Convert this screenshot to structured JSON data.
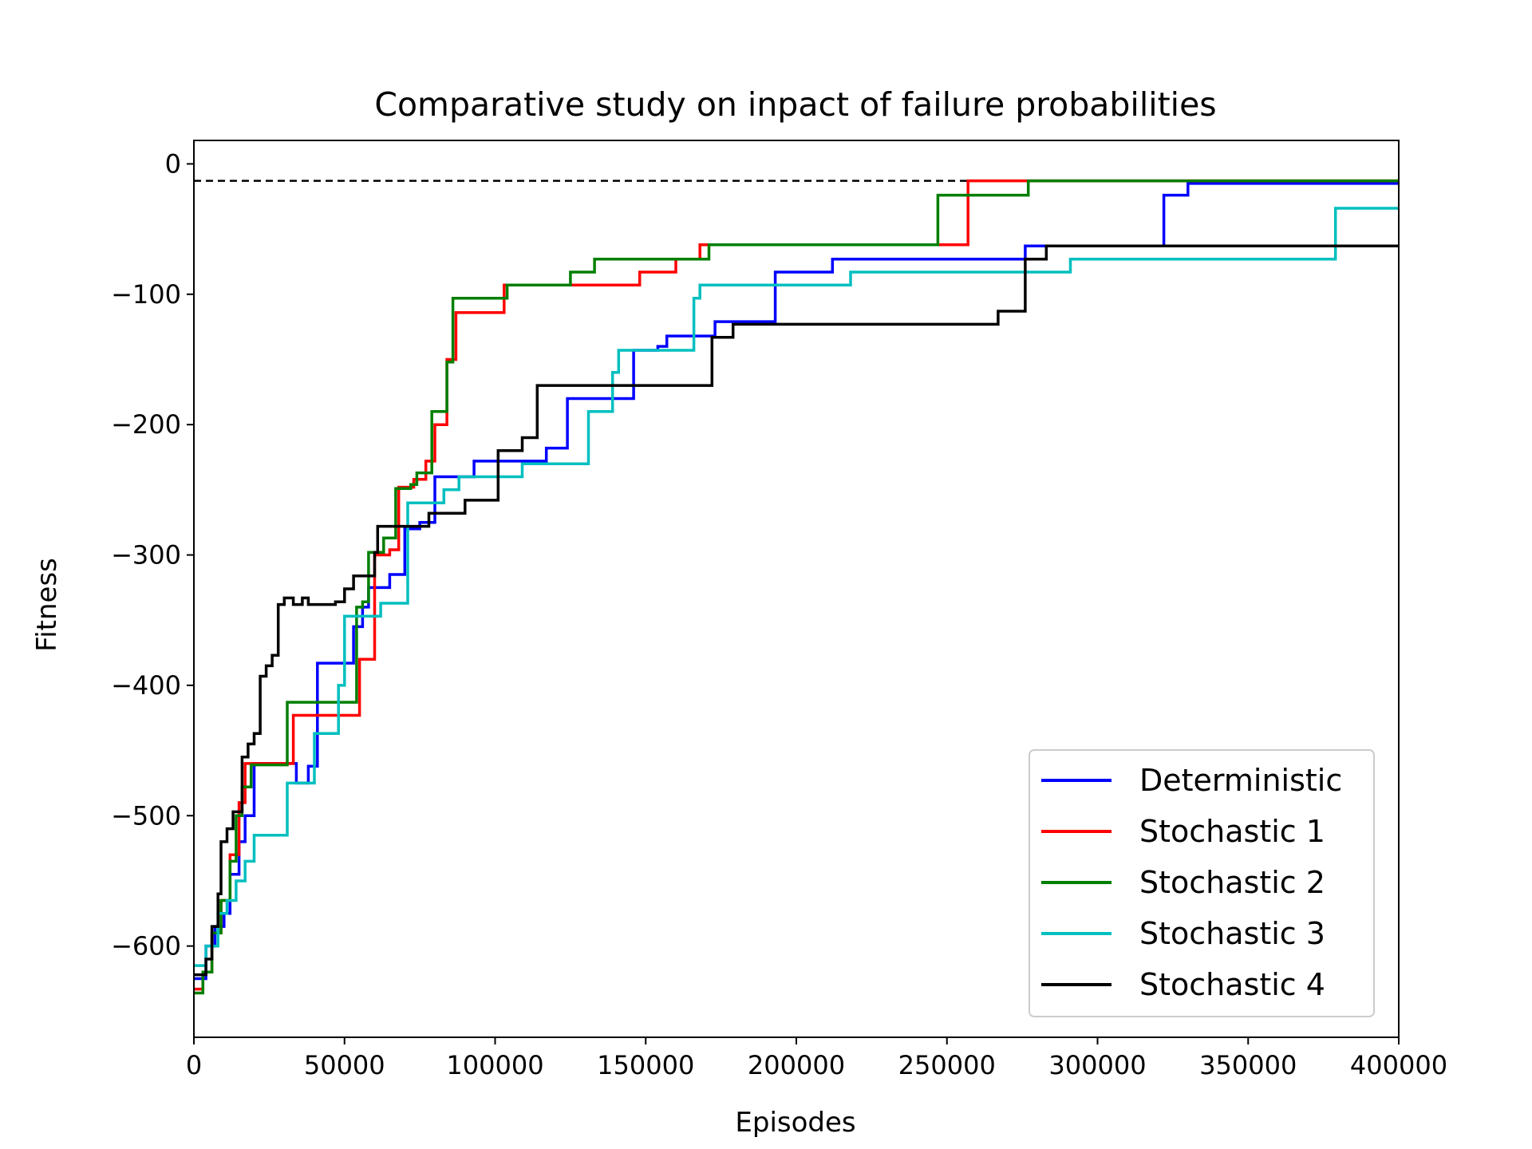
{
  "chart_data": {
    "type": "line",
    "title": "Comparative study on inpact of failure probabilities",
    "xlabel": "Episodes",
    "ylabel": "Fitness",
    "xlim": [
      0,
      400000
    ],
    "ylim": [
      -670,
      18
    ],
    "xticks": [
      0,
      50000,
      100000,
      150000,
      200000,
      250000,
      300000,
      350000,
      400000
    ],
    "xtick_labels": [
      "0",
      "50000",
      "100000",
      "150000",
      "200000",
      "250000",
      "300000",
      "350000",
      "400000"
    ],
    "yticks": [
      0,
      -100,
      -200,
      -300,
      -400,
      -500,
      -600
    ],
    "ytick_labels": [
      "0",
      "−100",
      "−200",
      "−300",
      "−400",
      "−500",
      "−600"
    ],
    "reference_line": {
      "y": -13,
      "style": "dashed",
      "color": "#000000"
    },
    "legend_position": "bottom-right",
    "series": [
      {
        "name": "Deterministic",
        "color": "#0000ff",
        "points": [
          [
            0,
            -625
          ],
          [
            4000,
            -600
          ],
          [
            7000,
            -585
          ],
          [
            10000,
            -575
          ],
          [
            12000,
            -545
          ],
          [
            15000,
            -520
          ],
          [
            17000,
            -500
          ],
          [
            20000,
            -460
          ],
          [
            30000,
            -460
          ],
          [
            34000,
            -475
          ],
          [
            38000,
            -462
          ],
          [
            41000,
            -383
          ],
          [
            53000,
            -355
          ],
          [
            56000,
            -340
          ],
          [
            58000,
            -325
          ],
          [
            65000,
            -315
          ],
          [
            70000,
            -280
          ],
          [
            75000,
            -275
          ],
          [
            80000,
            -240
          ],
          [
            88000,
            -240
          ],
          [
            93000,
            -228
          ],
          [
            100000,
            -228
          ],
          [
            117000,
            -218
          ],
          [
            124000,
            -180
          ],
          [
            131000,
            -180
          ],
          [
            146000,
            -143
          ],
          [
            154000,
            -140
          ],
          [
            157000,
            -132
          ],
          [
            167000,
            -132
          ],
          [
            173000,
            -121
          ],
          [
            193000,
            -83
          ],
          [
            212000,
            -73
          ],
          [
            276000,
            -63
          ],
          [
            322000,
            -24
          ],
          [
            330000,
            -15
          ],
          [
            400000,
            -15
          ]
        ]
      },
      {
        "name": "Stochastic 1",
        "color": "#ff0000",
        "points": [
          [
            0,
            -633
          ],
          [
            3000,
            -620
          ],
          [
            6000,
            -590
          ],
          [
            9000,
            -565
          ],
          [
            12000,
            -530
          ],
          [
            15000,
            -490
          ],
          [
            17000,
            -460
          ],
          [
            28000,
            -460
          ],
          [
            33000,
            -423
          ],
          [
            53000,
            -423
          ],
          [
            55000,
            -380
          ],
          [
            60000,
            -300
          ],
          [
            65000,
            -296
          ],
          [
            68000,
            -248
          ],
          [
            73000,
            -242
          ],
          [
            77000,
            -228
          ],
          [
            80000,
            -200
          ],
          [
            84000,
            -150
          ],
          [
            87000,
            -114
          ],
          [
            100000,
            -114
          ],
          [
            103000,
            -93
          ],
          [
            125000,
            -93
          ],
          [
            148000,
            -83
          ],
          [
            160000,
            -73
          ],
          [
            168000,
            -62
          ],
          [
            250000,
            -62
          ],
          [
            257000,
            -13
          ],
          [
            400000,
            -13
          ]
        ]
      },
      {
        "name": "Stochastic 2",
        "color": "#007f00",
        "points": [
          [
            0,
            -636
          ],
          [
            3000,
            -620
          ],
          [
            6000,
            -590
          ],
          [
            9000,
            -565
          ],
          [
            12000,
            -535
          ],
          [
            14000,
            -500
          ],
          [
            16000,
            -478
          ],
          [
            19000,
            -461
          ],
          [
            28000,
            -461
          ],
          [
            31000,
            -413
          ],
          [
            53000,
            -413
          ],
          [
            54000,
            -340
          ],
          [
            56000,
            -336
          ],
          [
            58000,
            -298
          ],
          [
            63000,
            -287
          ],
          [
            67000,
            -249
          ],
          [
            72000,
            -246
          ],
          [
            74000,
            -237
          ],
          [
            79000,
            -190
          ],
          [
            84000,
            -152
          ],
          [
            86000,
            -103
          ],
          [
            103000,
            -103
          ],
          [
            104000,
            -93
          ],
          [
            124000,
            -93
          ],
          [
            125000,
            -83
          ],
          [
            133000,
            -73
          ],
          [
            171000,
            -62
          ],
          [
            245000,
            -62
          ],
          [
            247000,
            -24
          ],
          [
            275000,
            -24
          ],
          [
            277000,
            -13
          ],
          [
            400000,
            -13
          ]
        ]
      },
      {
        "name": "Stochastic 3",
        "color": "#00bfbf",
        "points": [
          [
            0,
            -615
          ],
          [
            4000,
            -600
          ],
          [
            8000,
            -575
          ],
          [
            11000,
            -565
          ],
          [
            14000,
            -550
          ],
          [
            17000,
            -535
          ],
          [
            20000,
            -515
          ],
          [
            29000,
            -515
          ],
          [
            31000,
            -475
          ],
          [
            37000,
            -475
          ],
          [
            40000,
            -437
          ],
          [
            46000,
            -437
          ],
          [
            48000,
            -400
          ],
          [
            50000,
            -347
          ],
          [
            58000,
            -347
          ],
          [
            62000,
            -337
          ],
          [
            69000,
            -337
          ],
          [
            71000,
            -260
          ],
          [
            83000,
            -250
          ],
          [
            88000,
            -240
          ],
          [
            102000,
            -240
          ],
          [
            109000,
            -230
          ],
          [
            128000,
            -230
          ],
          [
            131000,
            -190
          ],
          [
            139000,
            -160
          ],
          [
            141000,
            -143
          ],
          [
            165000,
            -143
          ],
          [
            166000,
            -103
          ],
          [
            168000,
            -93
          ],
          [
            216000,
            -93
          ],
          [
            218000,
            -83
          ],
          [
            291000,
            -73
          ],
          [
            378000,
            -73
          ],
          [
            379000,
            -34
          ],
          [
            400000,
            -34
          ]
        ]
      },
      {
        "name": "Stochastic 4",
        "color": "#000000",
        "points": [
          [
            0,
            -622
          ],
          [
            4000,
            -610
          ],
          [
            6000,
            -585
          ],
          [
            8000,
            -560
          ],
          [
            9000,
            -520
          ],
          [
            11000,
            -510
          ],
          [
            13000,
            -497
          ],
          [
            16000,
            -455
          ],
          [
            18000,
            -445
          ],
          [
            20000,
            -437
          ],
          [
            22000,
            -393
          ],
          [
            24000,
            -385
          ],
          [
            26000,
            -377
          ],
          [
            28000,
            -338
          ],
          [
            30000,
            -333
          ],
          [
            33000,
            -338
          ],
          [
            36000,
            -333
          ],
          [
            38000,
            -338
          ],
          [
            47000,
            -336
          ],
          [
            50000,
            -326
          ],
          [
            53000,
            -316
          ],
          [
            60000,
            -298
          ],
          [
            61000,
            -278
          ],
          [
            76000,
            -278
          ],
          [
            78000,
            -268
          ],
          [
            83000,
            -268
          ],
          [
            90000,
            -258
          ],
          [
            97000,
            -258
          ],
          [
            101000,
            -220
          ],
          [
            107000,
            -220
          ],
          [
            109000,
            -210
          ],
          [
            112000,
            -210
          ],
          [
            114000,
            -170
          ],
          [
            170000,
            -170
          ],
          [
            172000,
            -133
          ],
          [
            179000,
            -123
          ],
          [
            265000,
            -123
          ],
          [
            267000,
            -113
          ],
          [
            276000,
            -73
          ],
          [
            283000,
            -63
          ],
          [
            400000,
            -63
          ]
        ]
      }
    ]
  }
}
